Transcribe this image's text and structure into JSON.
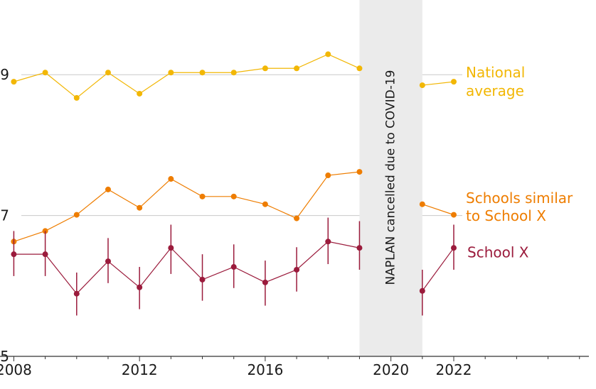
{
  "chart_data": {
    "type": "line",
    "title": "",
    "xlabel": "",
    "ylabel": "",
    "xlim": [
      2007.9,
      2026.3
    ],
    "ylim": [
      5,
      10
    ],
    "x_ticks": [
      2008,
      2012,
      2016,
      2020,
      2022
    ],
    "y_ticks": [
      5,
      7,
      9
    ],
    "y_gridlines": [
      7,
      9
    ],
    "grid": "horizontal",
    "gap": {
      "x_start": 2019.0,
      "x_end": 2021.0,
      "label": "NAPLAN cancelled due to COVID-19"
    },
    "series": [
      {
        "name": "National average",
        "color": "#f2b705",
        "error_bars": false,
        "points": [
          {
            "x": 2008,
            "y": 8.9
          },
          {
            "x": 2009,
            "y": 9.03
          },
          {
            "x": 2010,
            "y": 8.67
          },
          {
            "x": 2011,
            "y": 9.03
          },
          {
            "x": 2012,
            "y": 8.73
          },
          {
            "x": 2013,
            "y": 9.03
          },
          {
            "x": 2014,
            "y": 9.03
          },
          {
            "x": 2015,
            "y": 9.03
          },
          {
            "x": 2016,
            "y": 9.09
          },
          {
            "x": 2017,
            "y": 9.09
          },
          {
            "x": 2018,
            "y": 9.29
          },
          {
            "x": 2019,
            "y": 9.09
          },
          {
            "x": 2021,
            "y": 8.85
          },
          {
            "x": 2022,
            "y": 8.9
          }
        ]
      },
      {
        "name": "Schools similar to School X",
        "label_lines": [
          "Schools similar",
          "to School X"
        ],
        "color": "#ee7d00",
        "error_bars": false,
        "points": [
          {
            "x": 2008,
            "y": 6.63
          },
          {
            "x": 2009,
            "y": 6.78
          },
          {
            "x": 2010,
            "y": 7.01
          },
          {
            "x": 2011,
            "y": 7.37
          },
          {
            "x": 2012,
            "y": 7.11
          },
          {
            "x": 2013,
            "y": 7.52
          },
          {
            "x": 2014,
            "y": 7.27
          },
          {
            "x": 2015,
            "y": 7.27
          },
          {
            "x": 2016,
            "y": 7.16
          },
          {
            "x": 2017,
            "y": 6.96
          },
          {
            "x": 2018,
            "y": 7.57
          },
          {
            "x": 2019,
            "y": 7.62
          },
          {
            "x": 2021,
            "y": 7.16
          },
          {
            "x": 2022,
            "y": 7.01
          }
        ]
      },
      {
        "name": "School X",
        "color": "#9b1b3c",
        "error_bars": true,
        "points": [
          {
            "x": 2008,
            "y": 6.45,
            "lo": 6.14,
            "hi": 6.78
          },
          {
            "x": 2009,
            "y": 6.45,
            "lo": 6.14,
            "hi": 6.78
          },
          {
            "x": 2010,
            "y": 5.89,
            "lo": 5.58,
            "hi": 6.19
          },
          {
            "x": 2011,
            "y": 6.35,
            "lo": 6.04,
            "hi": 6.68
          },
          {
            "x": 2012,
            "y": 5.98,
            "lo": 5.67,
            "hi": 6.27
          },
          {
            "x": 2013,
            "y": 6.54,
            "lo": 6.17,
            "hi": 6.87
          },
          {
            "x": 2014,
            "y": 6.09,
            "lo": 5.79,
            "hi": 6.45
          },
          {
            "x": 2015,
            "y": 6.27,
            "lo": 5.97,
            "hi": 6.59
          },
          {
            "x": 2016,
            "y": 6.05,
            "lo": 5.72,
            "hi": 6.36
          },
          {
            "x": 2017,
            "y": 6.23,
            "lo": 5.92,
            "hi": 6.55
          },
          {
            "x": 2018,
            "y": 6.63,
            "lo": 6.31,
            "hi": 6.97
          },
          {
            "x": 2019,
            "y": 6.54,
            "lo": 6.23,
            "hi": 6.92
          },
          {
            "x": 2021,
            "y": 5.93,
            "lo": 5.58,
            "hi": 6.23
          },
          {
            "x": 2022,
            "y": 6.54,
            "lo": 6.23,
            "hi": 6.87
          }
        ]
      }
    ]
  }
}
